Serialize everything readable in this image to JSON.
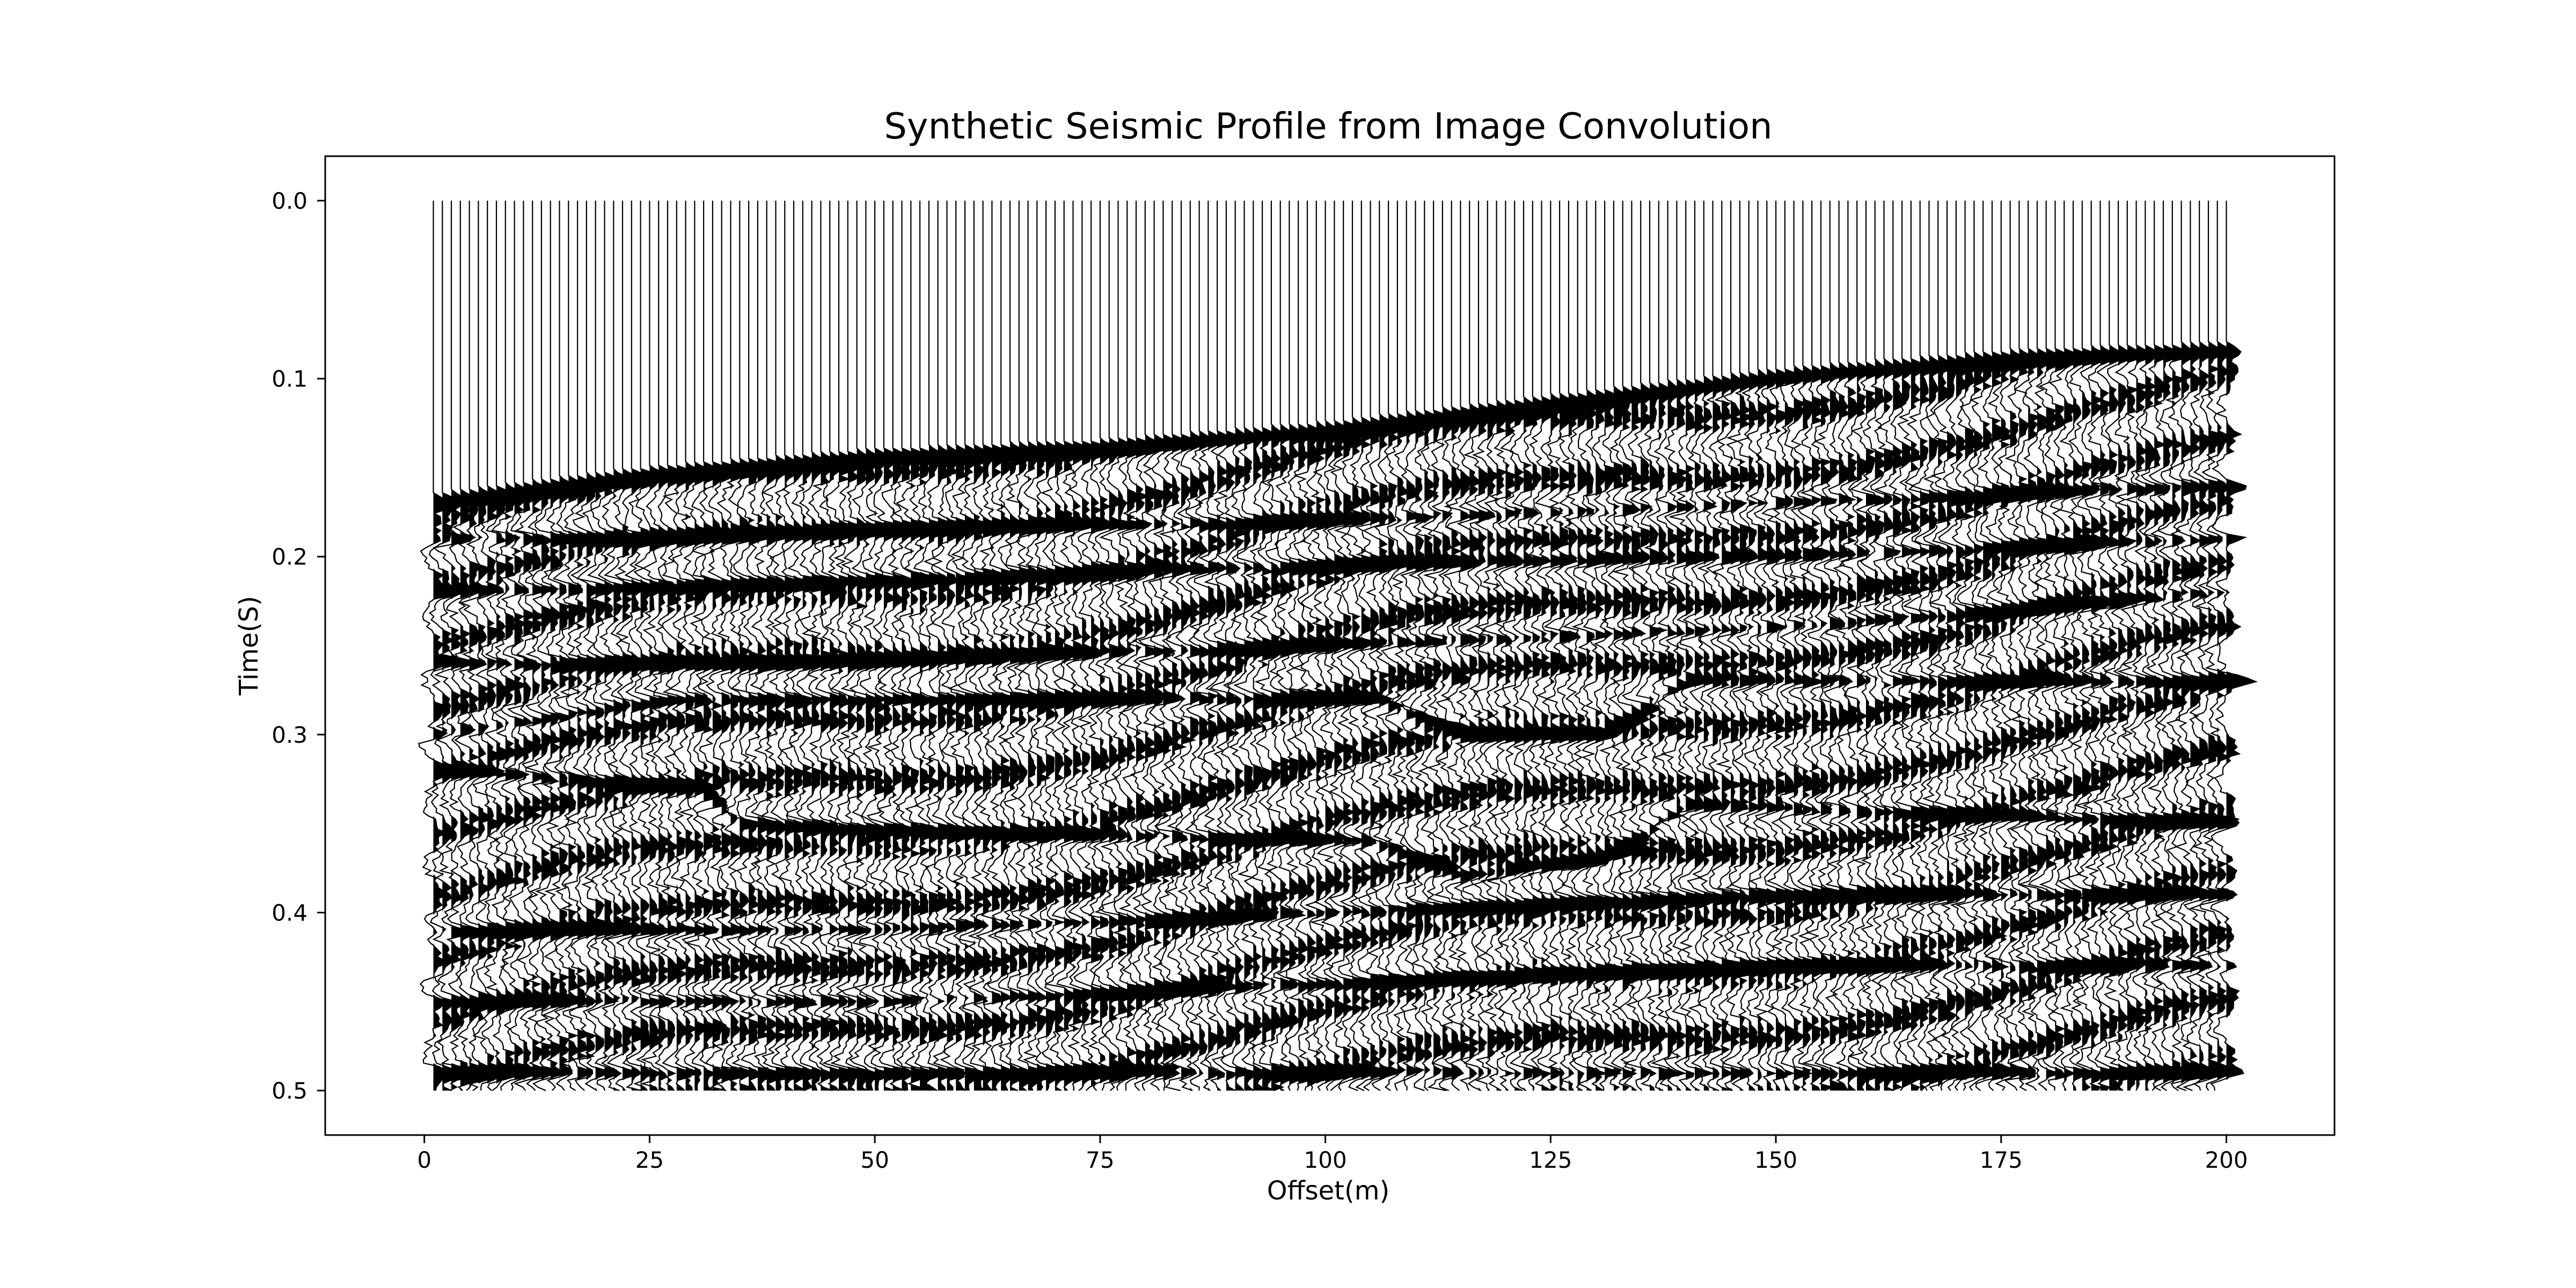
{
  "chart_data": {
    "type": "wiggle",
    "title": "Synthetic Seismic Profile from Image Convolution",
    "xlabel": "Offset(m)",
    "ylabel": "Time(S)",
    "xlim": [
      -11,
      212
    ],
    "ylim": [
      0.525,
      -0.025
    ],
    "y_inverted": true,
    "grid": false,
    "trace_offset_range": [
      1,
      200
    ],
    "trace_count": 200,
    "time_range": [
      0.0,
      0.5
    ],
    "fill": "positive-black",
    "xticks": [
      0,
      25,
      50,
      75,
      100,
      125,
      150,
      175,
      200
    ],
    "xtick_labels": [
      "0",
      "25",
      "50",
      "75",
      "100",
      "125",
      "150",
      "175",
      "200"
    ],
    "yticks": [
      0.0,
      0.1,
      0.2,
      0.3,
      0.4,
      0.5
    ],
    "ytick_labels": [
      "0.0",
      "0.1",
      "0.2",
      "0.3",
      "0.4",
      "0.5"
    ],
    "first_break": {
      "offsets": [
        1,
        25,
        50,
        75,
        100,
        125,
        150,
        175,
        200
      ],
      "times": [
        0.17,
        0.155,
        0.145,
        0.14,
        0.13,
        0.115,
        0.1,
        0.09,
        0.085
      ]
    },
    "reflectors": [
      {
        "offsets": [
          1,
          25,
          50,
          100,
          150,
          200
        ],
        "times": [
          0.19,
          0.19,
          0.185,
          0.18,
          0.17,
          0.16
        ]
      },
      {
        "offsets": [
          1,
          40,
          100,
          150,
          200
        ],
        "times": [
          0.22,
          0.215,
          0.205,
          0.2,
          0.19
        ]
      },
      {
        "offsets": [
          1,
          40,
          100,
          150,
          200
        ],
        "times": [
          0.26,
          0.26,
          0.25,
          0.24,
          0.22
        ]
      },
      {
        "offsets": [
          1,
          27,
          35,
          60,
          105,
          115,
          130,
          140,
          200
        ],
        "times": [
          0.3,
          0.28,
          0.28,
          0.28,
          0.28,
          0.3,
          0.3,
          0.27,
          0.27
        ]
      },
      {
        "offsets": [
          1,
          30,
          35,
          60,
          105,
          115,
          130,
          140,
          200
        ],
        "times": [
          0.32,
          0.33,
          0.35,
          0.355,
          0.36,
          0.38,
          0.37,
          0.34,
          0.35
        ]
      },
      {
        "offsets": [
          1,
          50,
          100,
          150,
          200
        ],
        "times": [
          0.41,
          0.41,
          0.4,
          0.39,
          0.39
        ]
      },
      {
        "offsets": [
          1,
          50,
          100,
          150,
          200
        ],
        "times": [
          0.45,
          0.45,
          0.44,
          0.43,
          0.43
        ]
      },
      {
        "offsets": [
          1,
          50,
          100,
          150,
          200
        ],
        "times": [
          0.49,
          0.49,
          0.49,
          0.49,
          0.49
        ]
      }
    ]
  }
}
